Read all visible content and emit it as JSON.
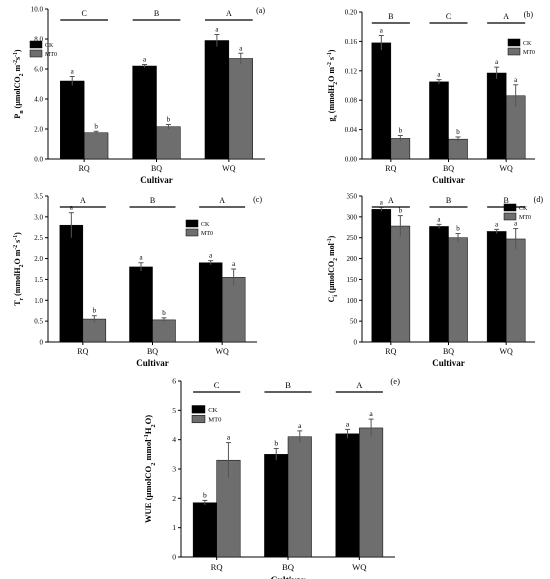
{
  "chart_data": [
    {
      "type": "bar",
      "panel_label": "(a)",
      "ylabel": "Pn (μmolCO2 m-2s-1)",
      "xlabel": "Cultivar",
      "categories": [
        "RQ",
        "BQ",
        "WQ"
      ],
      "ylim": [
        0,
        10
      ],
      "yticks": [
        "0.0",
        "2.0",
        "4.0",
        "6.0",
        "8.0",
        "10.0"
      ],
      "legend": {
        "position": "top-left",
        "items": [
          "CK",
          "MT0"
        ]
      },
      "series": [
        {
          "name": "CK",
          "values": [
            5.2,
            6.2,
            7.9
          ],
          "errors": [
            0.3,
            0.1,
            0.4
          ],
          "letters": [
            "a",
            "a",
            "a"
          ]
        },
        {
          "name": "MT0",
          "values": [
            1.75,
            2.15,
            6.7
          ],
          "errors": [
            0.1,
            0.15,
            0.35
          ],
          "letters": [
            "b",
            "b",
            "a"
          ]
        }
      ],
      "group_letters": [
        "C",
        "B",
        "A"
      ]
    },
    {
      "type": "bar",
      "panel_label": "(b)",
      "ylabel": "gs (mmolH2O m-2 s-1)",
      "xlabel": "Cultivar",
      "categories": [
        "RQ",
        "BQ",
        "WQ"
      ],
      "ylim": [
        0,
        0.2
      ],
      "yticks": [
        "0.00",
        "0.04",
        "0.08",
        "0.12",
        "0.16",
        "0.20"
      ],
      "legend": {
        "position": "top-right",
        "items": [
          "CK",
          "MT0"
        ]
      },
      "series": [
        {
          "name": "CK",
          "values": [
            0.158,
            0.105,
            0.117
          ],
          "errors": [
            0.01,
            0.003,
            0.008
          ],
          "letters": [
            "a",
            "a",
            "a"
          ]
        },
        {
          "name": "MT0",
          "values": [
            0.028,
            0.027,
            0.086
          ],
          "errors": [
            0.004,
            0.003,
            0.015
          ],
          "letters": [
            "b",
            "b",
            "a"
          ]
        }
      ],
      "group_letters": [
        "B",
        "C",
        "A"
      ]
    },
    {
      "type": "bar",
      "panel_label": "(c)",
      "ylabel": "Tr (mmolH2O m-2 s-1)",
      "xlabel": "Cultivar",
      "categories": [
        "RQ",
        "BQ",
        "WQ"
      ],
      "ylim": [
        0,
        3.5
      ],
      "yticks": [
        "0",
        "0.5",
        "1.0",
        "1.5",
        "2.0",
        "2.5",
        "3.0",
        "3.5"
      ],
      "legend": {
        "position": "top-right",
        "items": [
          "CK",
          "MT0"
        ]
      },
      "series": [
        {
          "name": "CK",
          "values": [
            2.8,
            1.8,
            1.9
          ],
          "errors": [
            0.3,
            0.1,
            0.05
          ],
          "letters": [
            "a",
            "a",
            "a"
          ]
        },
        {
          "name": "MT0",
          "values": [
            0.55,
            0.53,
            1.55
          ],
          "errors": [
            0.08,
            0.05,
            0.2
          ],
          "letters": [
            "b",
            "b",
            "a"
          ]
        }
      ],
      "group_letters": [
        "A",
        "B",
        "A"
      ]
    },
    {
      "type": "bar",
      "panel_label": "(d)",
      "ylabel": "Ci (μmolCO2 mol-1)",
      "xlabel": "Cultivar",
      "categories": [
        "RQ",
        "BQ",
        "WQ"
      ],
      "ylim": [
        0,
        350
      ],
      "yticks": [
        "0",
        "50",
        "100",
        "150",
        "200",
        "250",
        "300",
        "350"
      ],
      "legend": {
        "position": "top-right",
        "items": [
          "CK",
          "MT0"
        ]
      },
      "series": [
        {
          "name": "CK",
          "values": [
            318,
            277,
            265
          ],
          "errors": [
            5,
            5,
            5
          ],
          "letters": [
            "a",
            "a",
            "a"
          ]
        },
        {
          "name": "MT0",
          "values": [
            278,
            250,
            247
          ],
          "errors": [
            25,
            10,
            25
          ],
          "letters": [
            "b",
            "b",
            "a"
          ]
        }
      ],
      "group_letters": [
        "A",
        "B",
        "B"
      ]
    },
    {
      "type": "bar",
      "panel_label": "(e)",
      "ylabel": "WUE (μmolCO2 mmol-1H2O)",
      "xlabel": "Cultivar",
      "categories": [
        "RQ",
        "BQ",
        "WQ"
      ],
      "ylim": [
        0,
        6
      ],
      "yticks": [
        "0",
        "1",
        "2",
        "3",
        "4",
        "5",
        "6"
      ],
      "legend": {
        "position": "top-right",
        "items": [
          "CK",
          "MT0"
        ]
      },
      "series": [
        {
          "name": "CK",
          "values": [
            1.85,
            3.5,
            4.2
          ],
          "errors": [
            0.08,
            0.2,
            0.15
          ],
          "letters": [
            "b",
            "b",
            "a"
          ]
        },
        {
          "name": "MT0",
          "values": [
            3.3,
            4.1,
            4.4
          ],
          "errors": [
            0.6,
            0.2,
            0.3
          ],
          "letters": [
            "a",
            "a",
            "a"
          ]
        }
      ],
      "group_letters": [
        "C",
        "B",
        "A"
      ]
    }
  ],
  "colors": {
    "CK": "#000000",
    "MT0": "#6e6e6e",
    "axis": "#000000"
  }
}
